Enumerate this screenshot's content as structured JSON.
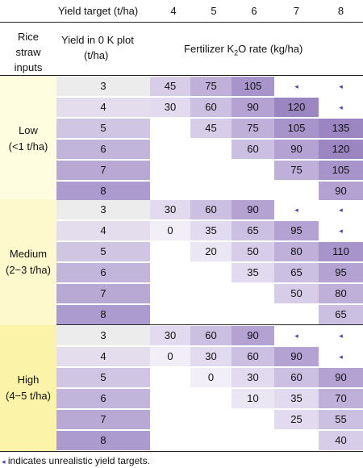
{
  "header": {
    "yield_target_label": "Yield target (t/ha)",
    "targets": [
      "4",
      "5",
      "6",
      "7",
      "8"
    ],
    "rice_straw_label": [
      "Rice",
      "straw",
      "inputs"
    ],
    "yield_0k_label": [
      "Yield in 0 K plot",
      "(t/ha)"
    ],
    "fert_label_pre": "Fertilizer K",
    "fert_label_sub": "2",
    "fert_label_post": "O rate (kg/ha)"
  },
  "groups": [
    {
      "label": [
        "Low",
        "(<1 t/ha)"
      ],
      "bg": "#fefde0",
      "rows": [
        {
          "yield": "3",
          "rates": [
            "45",
            "75",
            "105",
            "◂",
            "◂"
          ]
        },
        {
          "yield": "4",
          "rates": [
            "30",
            "60",
            "90",
            "120",
            "◂"
          ]
        },
        {
          "yield": "5",
          "rates": [
            "",
            "45",
            "75",
            "105",
            "135"
          ]
        },
        {
          "yield": "6",
          "rates": [
            "",
            "",
            "60",
            "90",
            "120"
          ]
        },
        {
          "yield": "7",
          "rates": [
            "",
            "",
            "",
            "75",
            "105"
          ]
        },
        {
          "yield": "8",
          "rates": [
            "",
            "",
            "",
            "",
            "90"
          ]
        }
      ]
    },
    {
      "label": [
        "Medium",
        "(2−3 t/ha)"
      ],
      "bg": "#fdf9cc",
      "rows": [
        {
          "yield": "3",
          "rates": [
            "30",
            "60",
            "90",
            "◂",
            "◂"
          ]
        },
        {
          "yield": "4",
          "rates": [
            "0",
            "35",
            "65",
            "95",
            "◂"
          ]
        },
        {
          "yield": "5",
          "rates": [
            "",
            "20",
            "50",
            "80",
            "110"
          ]
        },
        {
          "yield": "6",
          "rates": [
            "",
            "",
            "35",
            "65",
            "95"
          ]
        },
        {
          "yield": "7",
          "rates": [
            "",
            "",
            "",
            "50",
            "80"
          ]
        },
        {
          "yield": "8",
          "rates": [
            "",
            "",
            "",
            "",
            "65"
          ]
        }
      ]
    },
    {
      "label": [
        "High",
        "(4−5 t/ha)"
      ],
      "bg": "#fbf3a8",
      "rows": [
        {
          "yield": "3",
          "rates": [
            "30",
            "60",
            "90",
            "◂",
            "◂"
          ]
        },
        {
          "yield": "4",
          "rates": [
            "0",
            "30",
            "60",
            "90",
            "◂"
          ]
        },
        {
          "yield": "5",
          "rates": [
            "",
            "0",
            "30",
            "60",
            "90"
          ]
        },
        {
          "yield": "6",
          "rates": [
            "",
            "",
            "10",
            "35",
            "70"
          ]
        },
        {
          "yield": "7",
          "rates": [
            "",
            "",
            "",
            "25",
            "55"
          ]
        },
        {
          "yield": "8",
          "rates": [
            "",
            "",
            "",
            "",
            "40"
          ]
        }
      ]
    }
  ],
  "footnote": "◂ indicates unrealistic yield targets.",
  "colors": {
    "yield_col": [
      "#ececec",
      "#e3dded",
      "#d0c5e2",
      "#c2b5db",
      "#b7a8d4",
      "#ab9bce"
    ],
    "unrealistic_marker": "#5b3ea8"
  }
}
